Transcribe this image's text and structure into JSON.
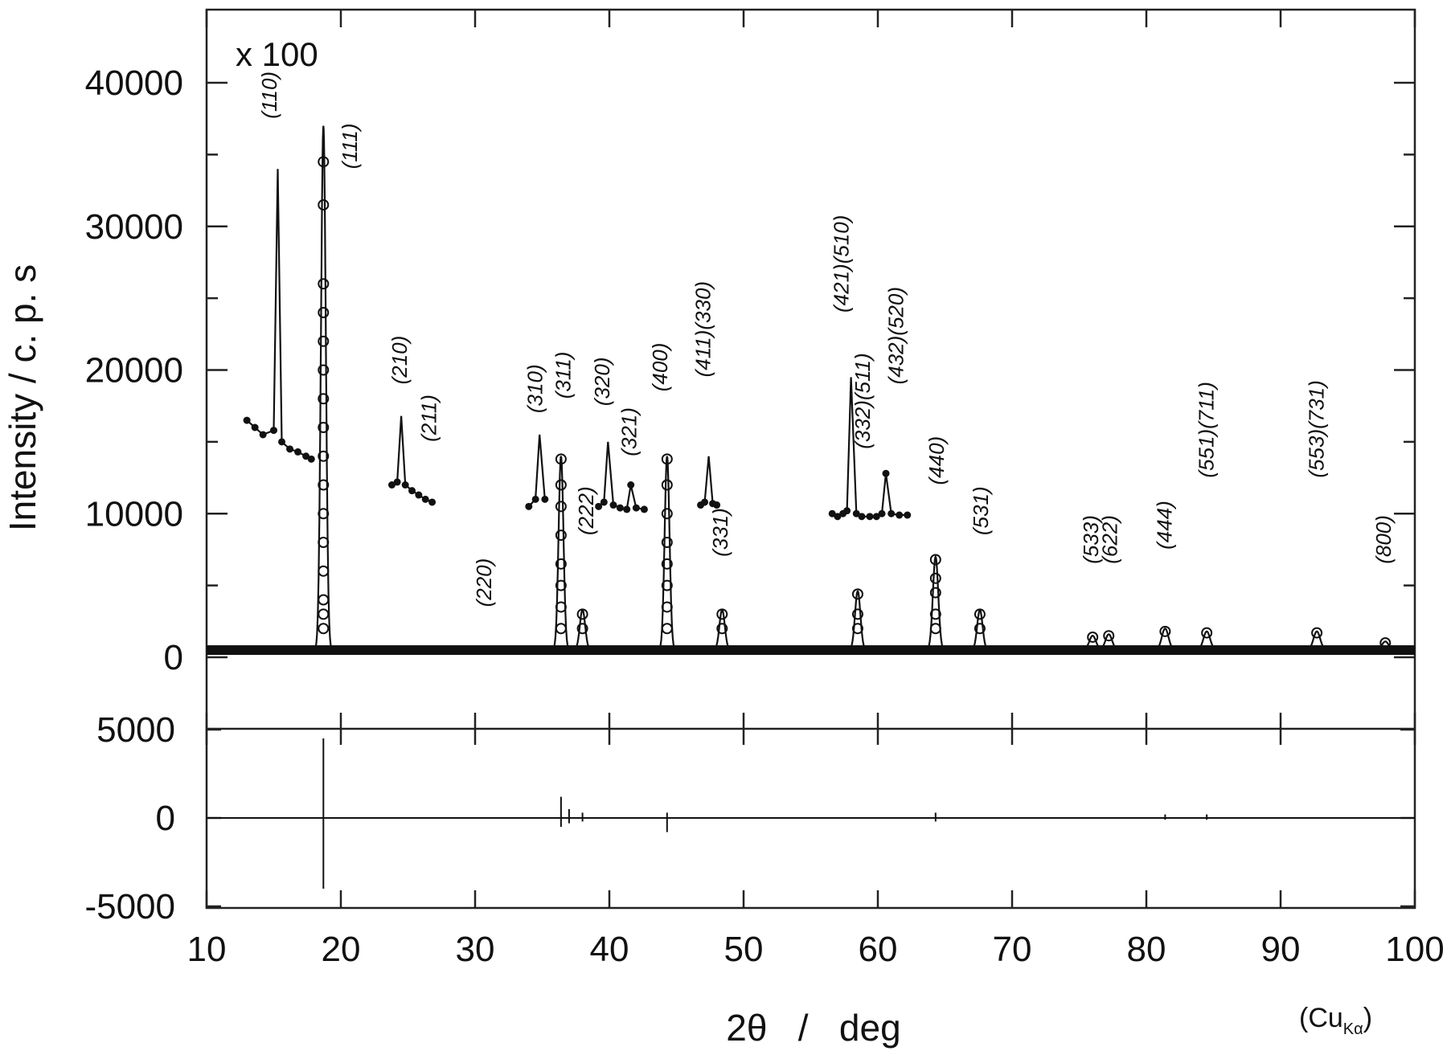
{
  "chart_data": {
    "type": "line",
    "xlabel": "2θ   /   deg",
    "ylabel": "Intensity  /  c. p. s",
    "multiplier": "x 100",
    "radiation_prefix": "(Cu",
    "radiation_sub": "Kα",
    "radiation_suffix": ")",
    "xlim": [
      10,
      100
    ],
    "ylim": [
      0,
      45000
    ],
    "diff_ylim": [
      -6500,
      6500
    ],
    "xticks": [
      "10",
      "20",
      "30",
      "40",
      "50",
      "60",
      "70",
      "80",
      "90",
      "100"
    ],
    "yticks": [
      {
        "value": 0,
        "label": "0"
      },
      {
        "value": 10000,
        "label": "10000"
      },
      {
        "value": 20000,
        "label": "20000"
      },
      {
        "value": 30000,
        "label": "30000"
      },
      {
        "value": 40000,
        "label": "40000"
      }
    ],
    "diff_yticks": [
      {
        "value": 5000,
        "label": "5000"
      },
      {
        "value": 0,
        "label": "0"
      },
      {
        "value": -5000,
        "label": "-5000"
      }
    ],
    "baseline": 500,
    "peaks": [
      {
        "x": 18.7,
        "y": 37000,
        "w": 0.18
      },
      {
        "x": 31.0,
        "y": 700,
        "w": 0.25
      },
      {
        "x": 36.4,
        "y": 14000,
        "w": 0.18
      },
      {
        "x": 38.0,
        "y": 3300,
        "w": 0.2
      },
      {
        "x": 44.3,
        "y": 14000,
        "w": 0.18
      },
      {
        "x": 48.4,
        "y": 3300,
        "w": 0.2
      },
      {
        "x": 58.5,
        "y": 4600,
        "w": 0.2
      },
      {
        "x": 64.3,
        "y": 7000,
        "w": 0.2
      },
      {
        "x": 67.6,
        "y": 3300,
        "w": 0.2
      },
      {
        "x": 76.0,
        "y": 1500,
        "w": 0.25
      },
      {
        "x": 77.2,
        "y": 1600,
        "w": 0.25
      },
      {
        "x": 81.4,
        "y": 2000,
        "w": 0.25
      },
      {
        "x": 84.5,
        "y": 1800,
        "w": 0.25
      },
      {
        "x": 92.7,
        "y": 1800,
        "w": 0.25
      },
      {
        "x": 97.8,
        "y": 1100,
        "w": 0.25
      }
    ],
    "obs_markers": [
      {
        "x": 18.7,
        "y": [
          2000,
          3000,
          4000,
          6000,
          8000,
          10000,
          12000,
          14000,
          16000,
          18000,
          20000,
          22000,
          24000,
          26000,
          31500,
          34500
        ]
      },
      {
        "x": 36.4,
        "y": [
          2000,
          3500,
          5000,
          6500,
          8500,
          10500,
          12000,
          13800
        ]
      },
      {
        "x": 38.0,
        "y": [
          2000,
          3000
        ]
      },
      {
        "x": 44.3,
        "y": [
          2000,
          3500,
          5000,
          6500,
          8000,
          10000,
          12000,
          13800
        ]
      },
      {
        "x": 48.4,
        "y": [
          2000,
          3000
        ]
      },
      {
        "x": 58.5,
        "y": [
          2000,
          3000,
          4400
        ]
      },
      {
        "x": 64.3,
        "y": [
          2000,
          3000,
          4500,
          5500,
          6800
        ]
      },
      {
        "x": 67.6,
        "y": [
          2000,
          3000
        ]
      },
      {
        "x": 76.0,
        "y": [
          1400
        ]
      },
      {
        "x": 77.2,
        "y": [
          1500
        ]
      },
      {
        "x": 81.4,
        "y": [
          1800
        ]
      },
      {
        "x": 84.5,
        "y": [
          1700
        ]
      },
      {
        "x": 92.7,
        "y": [
          1700
        ]
      },
      {
        "x": 97.8,
        "y": [
          1000
        ]
      }
    ],
    "insets": [
      {
        "x": [
          13.0,
          13.6,
          14.2,
          15.0,
          15.3,
          15.6,
          16.2,
          16.8,
          17.4,
          17.8
        ],
        "y": [
          16500,
          16000,
          15500,
          15800,
          34000,
          15000,
          14500,
          14300,
          14000,
          13800
        ]
      },
      {
        "x": [
          23.8,
          24.2,
          24.5,
          24.8,
          25.3,
          25.8,
          26.3,
          26.8
        ],
        "y": [
          12000,
          12200,
          16800,
          12000,
          11600,
          11300,
          11000,
          10800
        ]
      },
      {
        "x": [
          34.0,
          34.5,
          34.8,
          35.2
        ],
        "y": [
          10500,
          11000,
          15500,
          11000
        ]
      },
      {
        "x": [
          39.2,
          39.6,
          39.9,
          40.3,
          40.8,
          41.3,
          41.6,
          42.0,
          42.6
        ],
        "y": [
          10500,
          10800,
          15000,
          10600,
          10400,
          10300,
          12000,
          10400,
          10300
        ]
      },
      {
        "x": [
          46.8,
          47.1,
          47.4,
          47.7,
          48.0
        ],
        "y": [
          10600,
          10800,
          14000,
          10700,
          10600
        ]
      },
      {
        "x": [
          56.6,
          57.0,
          57.4,
          57.7,
          58.0,
          58.4,
          58.8,
          59.4,
          59.9,
          60.3,
          60.6,
          61.0,
          61.6,
          62.2
        ],
        "y": [
          10000,
          9800,
          10000,
          10200,
          19500,
          10000,
          9800,
          9800,
          9800,
          10000,
          12800,
          10000,
          9900,
          9900
        ]
      }
    ],
    "diff_spikes": [
      {
        "x": 18.7,
        "up": 4500,
        "down": -4000
      },
      {
        "x": 36.4,
        "up": 1200,
        "down": -500
      },
      {
        "x": 37.0,
        "up": 500,
        "down": -300
      },
      {
        "x": 38.0,
        "up": 300,
        "down": -200
      },
      {
        "x": 44.3,
        "up": 300,
        "down": -800
      },
      {
        "x": 64.3,
        "up": 300,
        "down": -200
      },
      {
        "x": 81.4,
        "up": 200,
        "down": -100
      },
      {
        "x": 84.5,
        "up": 200,
        "down": -100
      }
    ],
    "labels": [
      {
        "text": "(110)",
        "x": 15.2,
        "y": 37500
      },
      {
        "text": "(111)",
        "x": 21.2,
        "y": 34000
      },
      {
        "text": "(210)",
        "x": 24.9,
        "y": 19000
      },
      {
        "text": "(211)",
        "x": 27.1,
        "y": 15000
      },
      {
        "text": "(220)",
        "x": 31.2,
        "y": 3500
      },
      {
        "text": "(310)",
        "x": 35.0,
        "y": 17000
      },
      {
        "text": "(311)",
        "x": 37.1,
        "y": 18000
      },
      {
        "text": "(222)",
        "x": 38.8,
        "y": 8500
      },
      {
        "text": "(320)",
        "x": 40.0,
        "y": 17500
      },
      {
        "text": "(321)",
        "x": 42.0,
        "y": 14000
      },
      {
        "text": "(400)",
        "x": 44.3,
        "y": 18500
      },
      {
        "text": "(411)(330)",
        "x": 47.5,
        "y": 19500
      },
      {
        "text": "(331)",
        "x": 48.8,
        "y": 7000
      },
      {
        "text": "(421)(510)",
        "x": 57.8,
        "y": 24000
      },
      {
        "text": "(332)(511)",
        "x": 59.4,
        "y": 14500
      },
      {
        "text": "(432)(520)",
        "x": 61.9,
        "y": 19000
      },
      {
        "text": "(440)",
        "x": 64.9,
        "y": 12000
      },
      {
        "text": "(531)",
        "x": 68.2,
        "y": 8500
      },
      {
        "text": "(533)",
        "x": 76.4,
        "y": 6500
      },
      {
        "text": "(622)",
        "x": 77.8,
        "y": 6500
      },
      {
        "text": "(444)",
        "x": 81.9,
        "y": 7500
      },
      {
        "text": "(551)(711)",
        "x": 85.0,
        "y": 12500
      },
      {
        "text": "(553)(731)",
        "x": 93.2,
        "y": 12500
      },
      {
        "text": "(800)",
        "x": 98.2,
        "y": 6500
      }
    ]
  }
}
